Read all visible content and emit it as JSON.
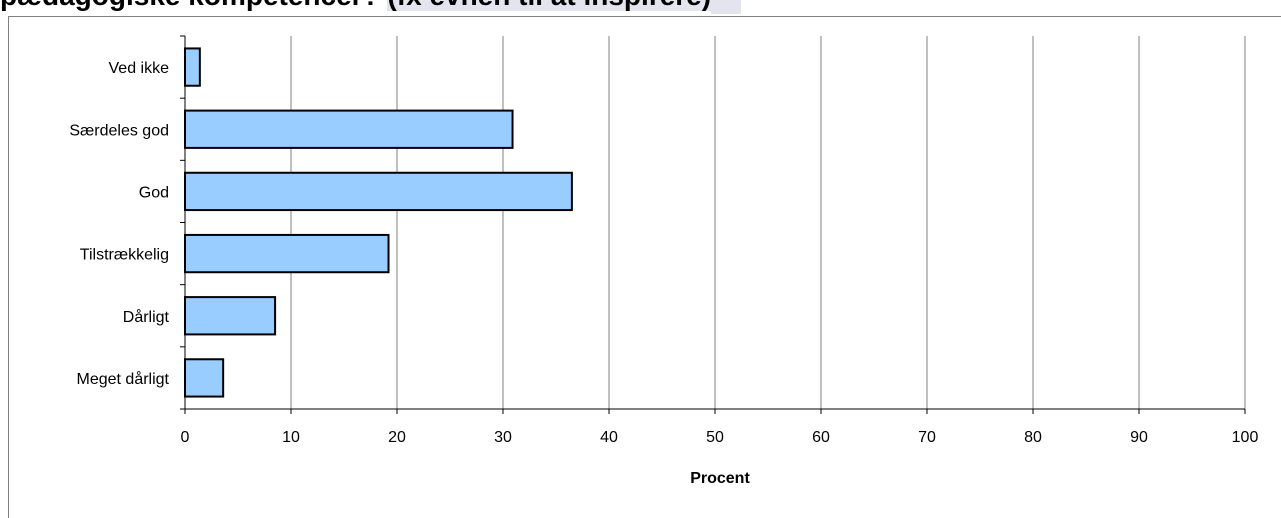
{
  "title": {
    "main": "pædagogiske kompetencer? ",
    "highlight": "(fx evnen til at inspirere)"
  },
  "colors": {
    "bar_fill": "#99ccff",
    "bar_stroke": "#000000",
    "grid": "#808080",
    "title_highlight": "#e4e4ee"
  },
  "chart_data": {
    "type": "bar",
    "orientation": "horizontal",
    "categories": [
      "Ved ikke",
      "Særdeles god",
      "God",
      "Tilstrækkelig",
      "Dårligt",
      "Meget dårligt"
    ],
    "values": [
      1.4,
      30.9,
      36.5,
      19.2,
      8.5,
      3.6
    ],
    "xlabel": "Procent",
    "ylabel": "",
    "xlim": [
      0,
      100
    ],
    "xticks": [
      0,
      10,
      20,
      30,
      40,
      50,
      60,
      70,
      80,
      90,
      100
    ],
    "grid": "vertical",
    "legend": "none"
  }
}
